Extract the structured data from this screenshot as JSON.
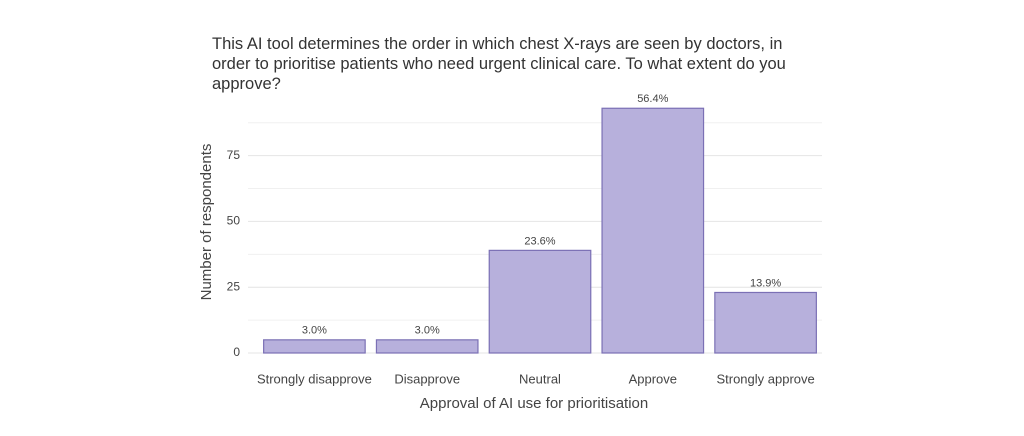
{
  "chart_data": {
    "type": "bar",
    "title": "This AI tool determines the order in which chest X-rays are seen by doctors, in order to prioritise patients who need urgent clinical care. To what extent do you approve?",
    "x_label": "Approval of AI use for prioritisation",
    "y_label": "Number of respondents",
    "categories": [
      "Strongly disapprove",
      "Disapprove",
      "Neutral",
      "Approve",
      "Strongly approve"
    ],
    "values": [
      5,
      5,
      39,
      93,
      23
    ],
    "bar_labels": [
      "3.0%",
      "3.0%",
      "23.6%",
      "56.4%",
      "13.9%"
    ],
    "color": "#b7b0dc",
    "edge_color": "#7b70b5",
    "ylim": [
      0,
      95
    ],
    "yticks": [
      0,
      25,
      50,
      75
    ],
    "minor_yticks": [
      12.5,
      37.5,
      62.5,
      87.5
    ],
    "grid": true
  }
}
